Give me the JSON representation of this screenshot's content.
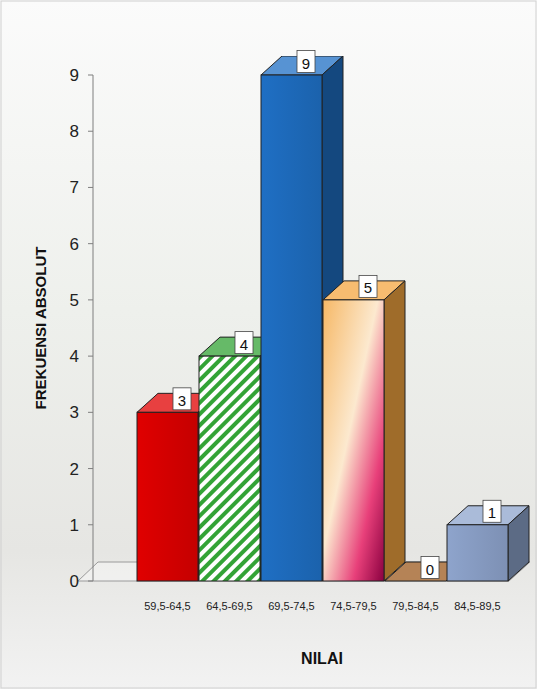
{
  "chart_data": {
    "type": "bar",
    "categories": [
      "59,5-64,5",
      "64,5-69,5",
      "69,5-74,5",
      "74,5-79,5",
      "79,5-84,5",
      "84,5-89,5"
    ],
    "values": [
      3,
      4,
      9,
      5,
      0,
      1
    ],
    "colors": [
      "#e00000",
      "#33a336",
      "#1f6fc4",
      "#f4a640",
      "#9c5a1e",
      "#8ea4cc"
    ],
    "x_label": "NILAI",
    "y_label": "FREKUENSI ABSOLUT",
    "ylim": [
      0,
      9
    ],
    "yticks": [
      0,
      1,
      2,
      3,
      4,
      5,
      6,
      7,
      8,
      9
    ],
    "grid": false,
    "data_labels": true
  }
}
